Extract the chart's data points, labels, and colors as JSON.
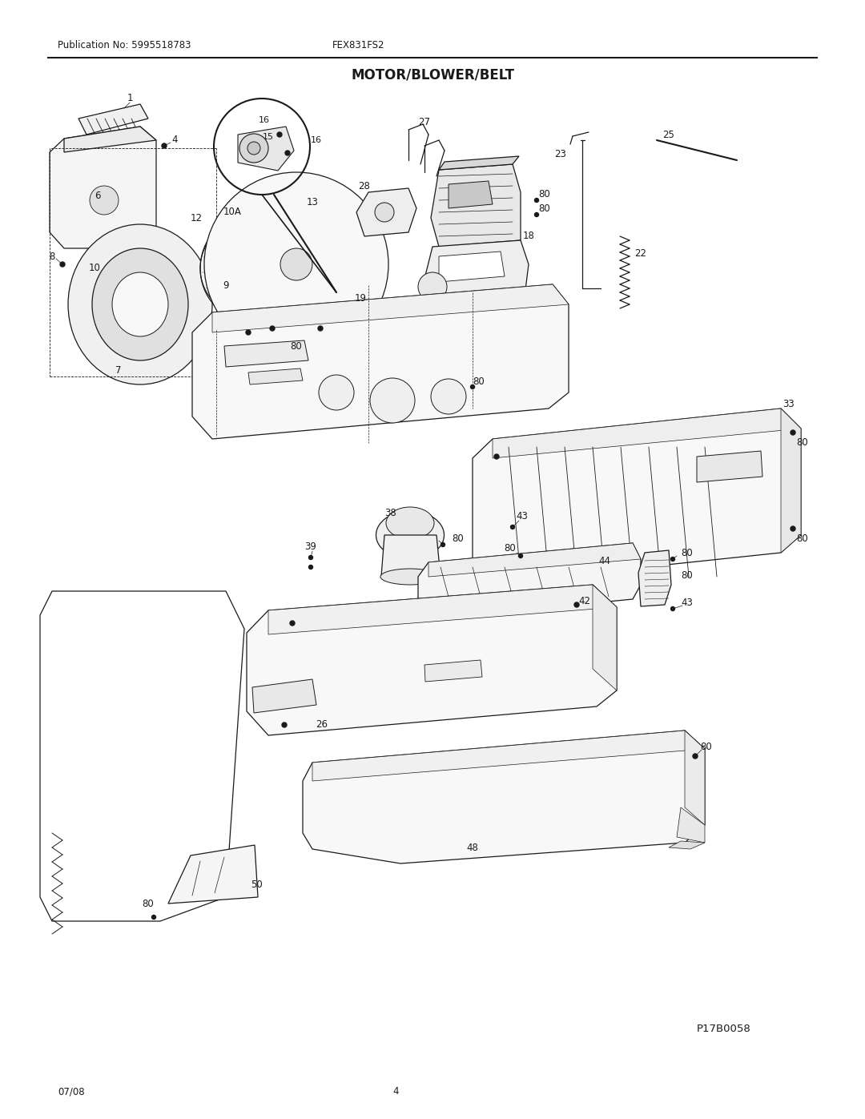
{
  "pub_no": "Publication No: 5995518783",
  "model": "FEX831FS2",
  "title": "MOTOR/BLOWER/BELT",
  "diagram_id": "P17B0058",
  "date": "07/08",
  "page": "4",
  "bg_color": "#ffffff",
  "line_color": "#1a1a1a",
  "title_fontsize": 12,
  "label_fontsize": 8.5,
  "header_fontsize": 8.5
}
